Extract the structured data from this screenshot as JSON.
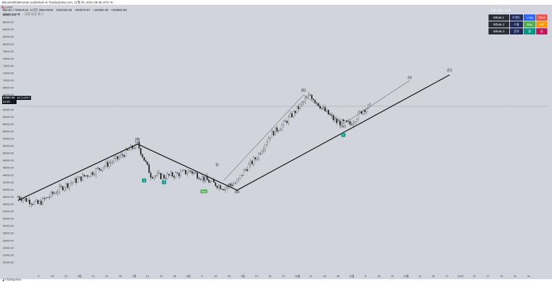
{
  "header": {
    "publisher": "BitcoinWhaleHunter published on TradingView.com, 11월 03, 2021 09:36 UTC+9"
  },
  "legend": {
    "flag": "🇺🇸 USDT",
    "symbol": "Bitcoin / TetherUS, 4시간, BINANCE",
    "open": "O62448.46",
    "high": "H63070.97",
    "low": "L62384.38",
    "close": "C62892.66",
    "indicator": "whale signal",
    "indicator_note": "· 고래 등장 표시"
  },
  "last_price": {
    "value": "62892.66",
    "countdown": "23:23",
    "ticker": "BTCUSDT"
  },
  "whale_panel": {
    "header": "고래 유형 / 신호",
    "rows": [
      {
        "name": "Whale 1",
        "mid": "트렌드",
        "signal": "Long",
        "signal2": "Short",
        "color": "#2962ff",
        "color2": "#ef5350"
      },
      {
        "name": "Whale 2",
        "mid": "스윙",
        "signal": "Buy",
        "signal2": "sell",
        "color": "#4caf50",
        "color2": "#ff9800"
      },
      {
        "name": "Whale 3",
        "mid": "단타",
        "signal": "롱",
        "signal2": "숏",
        "color": "#009688",
        "color2": "#c2185b"
      }
    ]
  },
  "footer": {
    "brand": "TradingView"
  },
  "chart_data": {
    "type": "candlestick",
    "symbol": "BTCUSDT",
    "timeframe": "4h",
    "ylim": [
      18000,
      90000
    ],
    "y_ticks": [
      20000,
      22000,
      24000,
      26000,
      28000,
      30000,
      32000,
      34000,
      36000,
      38000,
      40000,
      42000,
      44000,
      46000,
      48000,
      50000,
      52000,
      54000,
      56000,
      58000,
      60000,
      62000,
      64000,
      66000,
      68000,
      70000,
      72000,
      74000,
      76000,
      78000,
      80000,
      82000,
      84000,
      86000,
      88000
    ],
    "x_ticks": [
      "9",
      "16",
      "23",
      "6월",
      "14",
      "21",
      "28",
      "7월",
      "12",
      "19",
      "26",
      "8월",
      "9",
      "16",
      "23",
      "9월",
      "13",
      "20",
      "27",
      "10월",
      "11",
      "18",
      "25",
      "11월",
      "8",
      "15",
      "22",
      "12월",
      "13",
      "20",
      "27",
      "2022",
      "10",
      "17",
      "24",
      "31",
      "14"
    ],
    "price_path": [
      [
        0,
        38000
      ],
      [
        6,
        36000
      ],
      [
        14,
        41000
      ],
      [
        22,
        44500
      ],
      [
        30,
        48500
      ],
      [
        36,
        52500
      ],
      [
        40,
        44000
      ],
      [
        44,
        43500
      ],
      [
        52,
        45000
      ],
      [
        58,
        42000
      ],
      [
        62,
        40500
      ],
      [
        66,
        42000
      ],
      [
        68,
        45000
      ],
      [
        72,
        49000
      ],
      [
        76,
        55000
      ],
      [
        80,
        58000
      ],
      [
        84,
        62000
      ],
      [
        88,
        66000
      ],
      [
        92,
        62000
      ],
      [
        96,
        58500
      ],
      [
        100,
        58000
      ],
      [
        104,
        62000
      ],
      [
        106,
        62892
      ]
    ],
    "waves": [
      {
        "label": "(A)",
        "x": 36,
        "y": 53500
      },
      {
        "label": "(B)",
        "x": 66,
        "y": 39000
      },
      {
        "label": "(C)",
        "x": 130,
        "y": 72500
      },
      {
        "label": "(i)",
        "x": 60,
        "y": 46500
      },
      {
        "label": "(ii)",
        "x": 64,
        "y": 41000
      },
      {
        "label": "(iii)",
        "x": 86,
        "y": 67000
      },
      {
        "label": "(iv)",
        "x": 98,
        "y": 57000
      },
      {
        "label": "(v)",
        "x": 118,
        "y": 70500
      }
    ],
    "lines": [
      {
        "from": [
          0,
          37000
        ],
        "to": [
          36,
          52500
        ]
      },
      {
        "from": [
          36,
          52500
        ],
        "to": [
          66,
          39800
        ]
      },
      {
        "from": [
          66,
          39800
        ],
        "to": [
          130,
          71500
        ]
      }
    ],
    "signals": [
      {
        "label": "S",
        "x": 38,
        "y": 43000,
        "color": "#009688"
      },
      {
        "label": "S",
        "x": 44,
        "y": 42500,
        "color": "#009688"
      },
      {
        "label": "Buy",
        "x": 56,
        "y": 40000,
        "color": "#4caf50"
      },
      {
        "label": "S",
        "x": 98,
        "y": 55500,
        "color": "#009688"
      }
    ]
  }
}
